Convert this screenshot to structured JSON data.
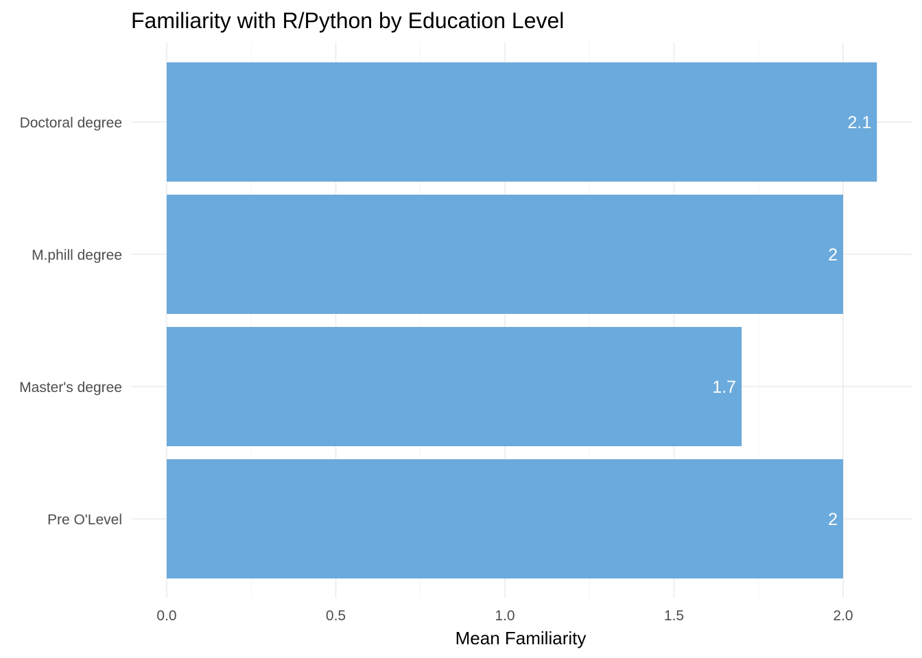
{
  "chart_data": {
    "type": "bar",
    "orientation": "horizontal",
    "title": "Familiarity with R/Python by Education Level",
    "xlabel": "Mean Familiarity",
    "ylabel": "",
    "categories": [
      "Doctoral degree",
      "M.phill degree",
      "Master's degree",
      "Pre O'Level"
    ],
    "values": [
      2.1,
      2.0,
      1.7,
      2.0
    ],
    "data_labels": [
      "2.1",
      "2",
      "1.7",
      "2"
    ],
    "xlim": [
      0,
      2.1
    ],
    "xticks": [
      "0.0",
      "0.5",
      "1.0",
      "1.5",
      "2.0"
    ],
    "grid": true,
    "legend": "none",
    "bar_color": "#6baadc",
    "label_color": "#ffffff"
  }
}
